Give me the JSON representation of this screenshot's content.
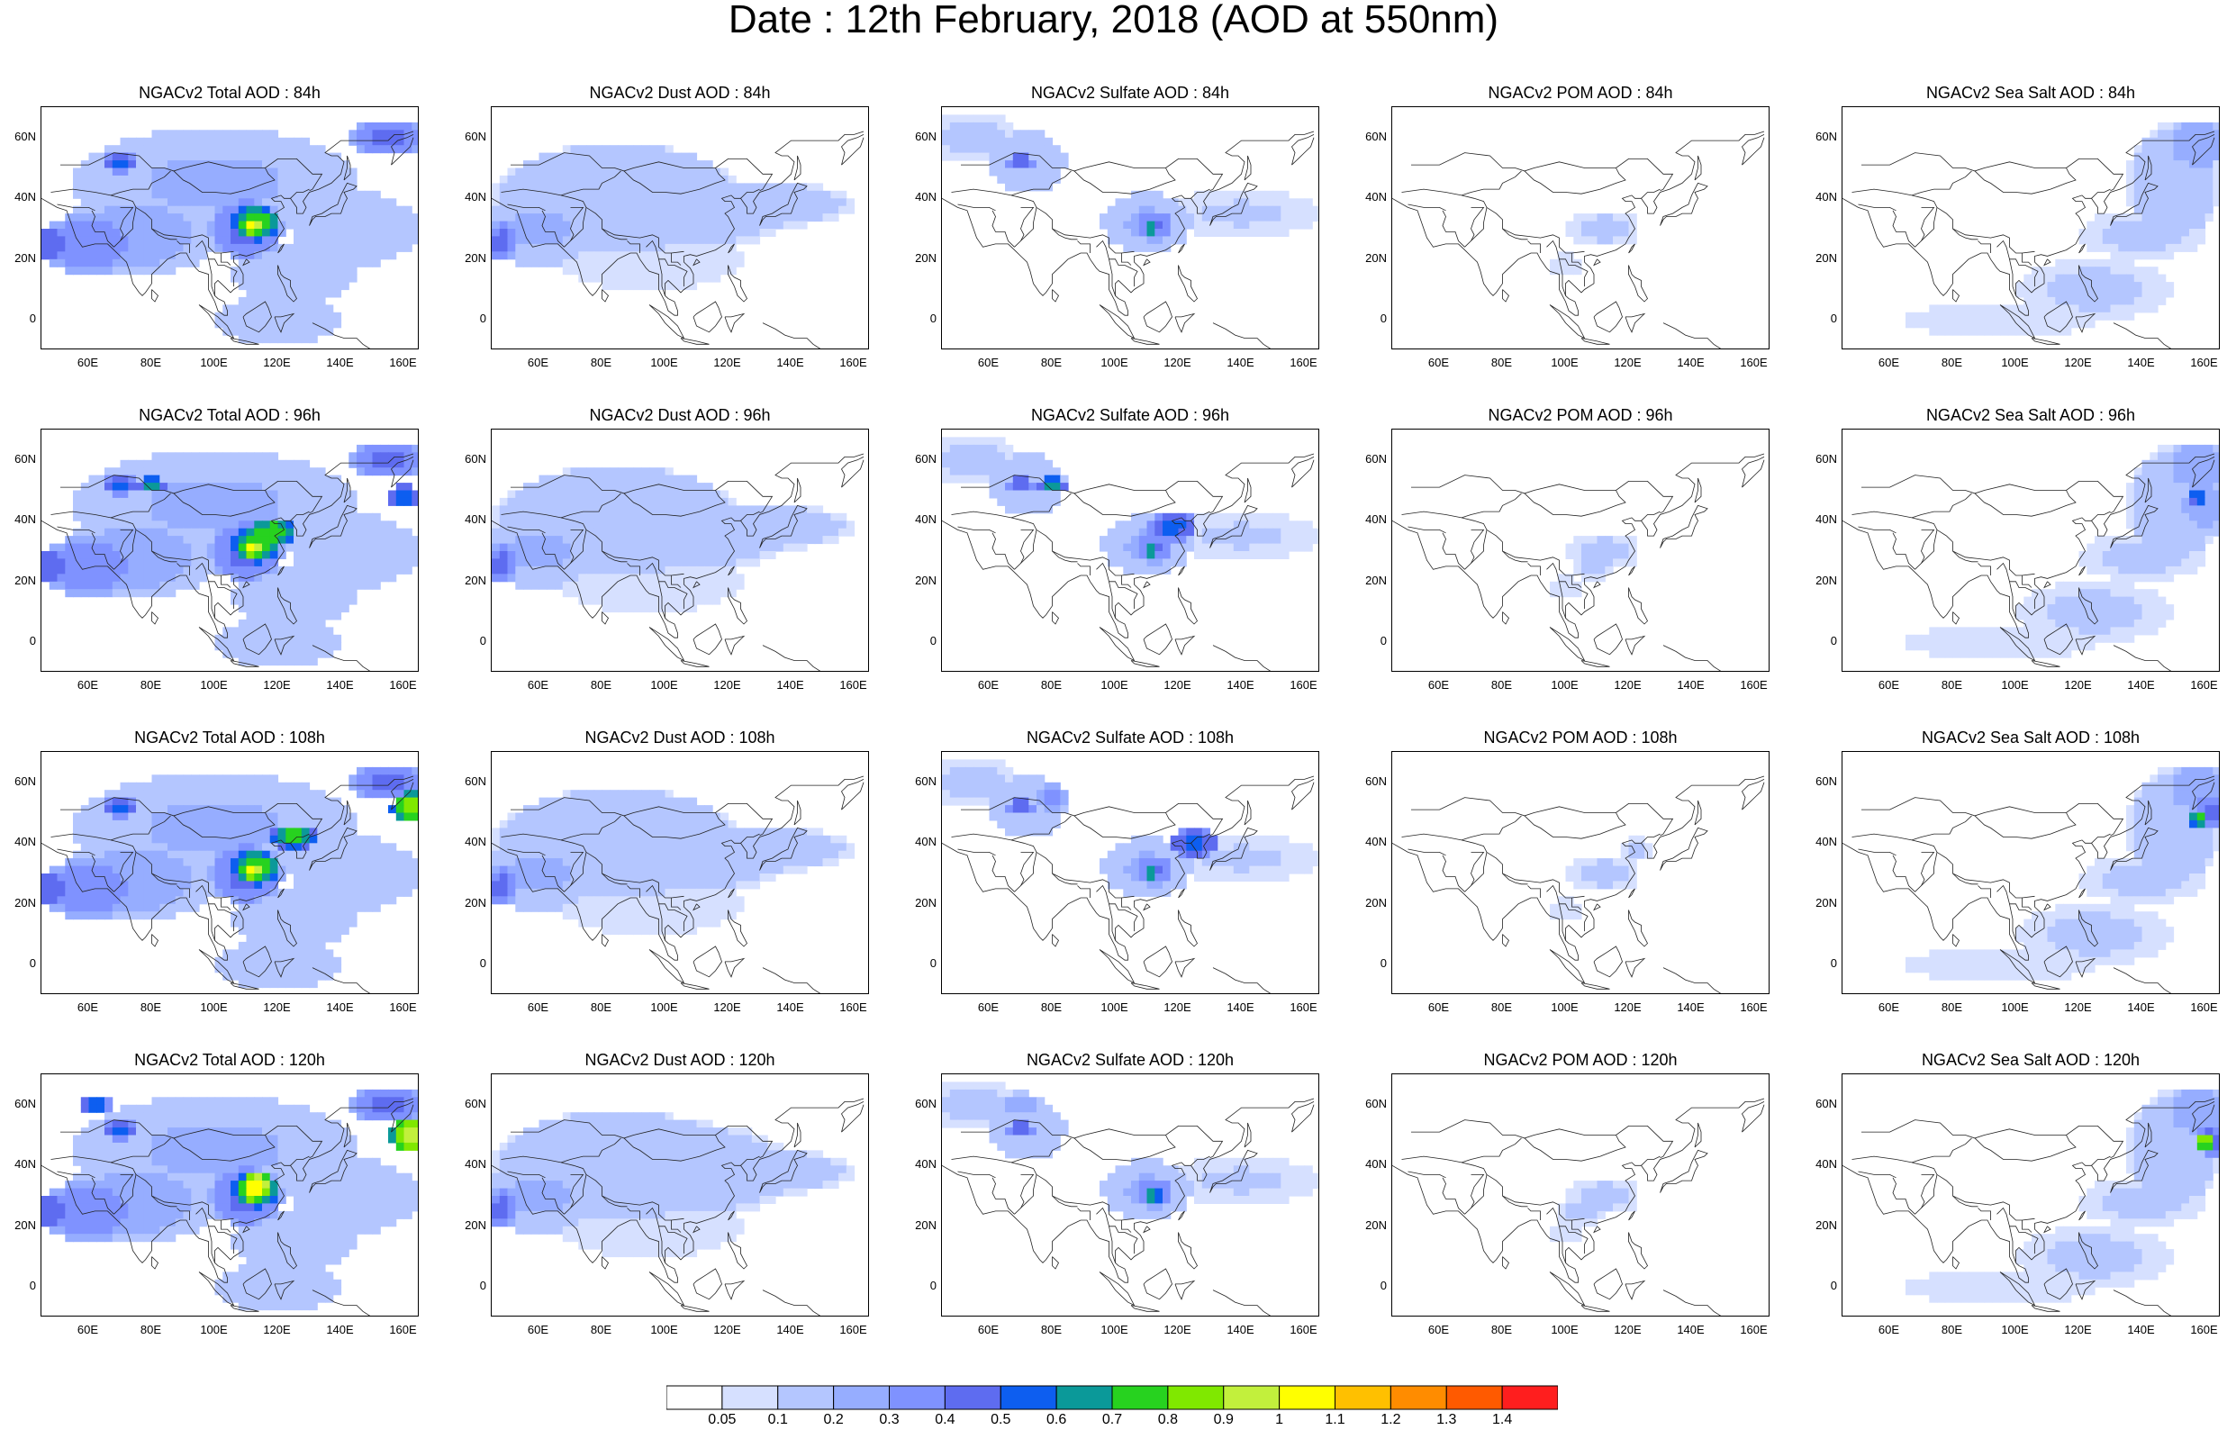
{
  "figure": {
    "title": "Date : 12th February, 2018 (AOD at 550nm)"
  },
  "axes": {
    "x_ticks": [
      "60E",
      "80E",
      "100E",
      "120E",
      "140E",
      "160E"
    ],
    "x_tick_values": [
      60,
      80,
      100,
      120,
      140,
      160
    ],
    "y_ticks": [
      "60N",
      "40N",
      "20N",
      "0"
    ],
    "y_tick_values": [
      60,
      40,
      20,
      0
    ],
    "lon_range": [
      45,
      165
    ],
    "lat_range": [
      -10,
      70
    ]
  },
  "colorbar": {
    "labels": [
      "0.05",
      "0.1",
      "0.2",
      "0.3",
      "0.4",
      "0.5",
      "0.6",
      "0.7",
      "0.8",
      "0.9",
      "1",
      "1.1",
      "1.2",
      "1.3",
      "1.4"
    ],
    "colors": [
      "#ffffff",
      "#d6e0ff",
      "#b4c6ff",
      "#96adff",
      "#7f92ff",
      "#5e6cf0",
      "#0d5ef0",
      "#0b9999",
      "#27d21f",
      "#80e800",
      "#c2f03c",
      "#ffff00",
      "#ffc000",
      "#ff8c00",
      "#ff5a00",
      "#ff1e1e"
    ]
  },
  "panels": [
    {
      "title": "NGACv2 Total AOD : 84h",
      "species": "total",
      "hour": 84
    },
    {
      "title": "NGACv2 Dust AOD : 84h",
      "species": "dust",
      "hour": 84
    },
    {
      "title": "NGACv2 Sulfate AOD : 84h",
      "species": "sulfate",
      "hour": 84
    },
    {
      "title": "NGACv2 POM AOD : 84h",
      "species": "pom",
      "hour": 84
    },
    {
      "title": "NGACv2 Sea Salt AOD : 84h",
      "species": "seasalt",
      "hour": 84
    },
    {
      "title": "NGACv2 Total AOD : 96h",
      "species": "total",
      "hour": 96
    },
    {
      "title": "NGACv2 Dust AOD : 96h",
      "species": "dust",
      "hour": 96
    },
    {
      "title": "NGACv2 Sulfate AOD : 96h",
      "species": "sulfate",
      "hour": 96
    },
    {
      "title": "NGACv2 POM AOD : 96h",
      "species": "pom",
      "hour": 96
    },
    {
      "title": "NGACv2 Sea Salt AOD : 96h",
      "species": "seasalt",
      "hour": 96
    },
    {
      "title": "NGACv2 Total AOD : 108h",
      "species": "total",
      "hour": 108
    },
    {
      "title": "NGACv2 Dust AOD : 108h",
      "species": "dust",
      "hour": 108
    },
    {
      "title": "NGACv2 Sulfate AOD : 108h",
      "species": "sulfate",
      "hour": 108
    },
    {
      "title": "NGACv2 POM AOD : 108h",
      "species": "pom",
      "hour": 108
    },
    {
      "title": "NGACv2 Sea Salt AOD : 108h",
      "species": "seasalt",
      "hour": 108
    },
    {
      "title": "NGACv2 Total AOD : 120h",
      "species": "total",
      "hour": 120
    },
    {
      "title": "NGACv2 Dust AOD : 120h",
      "species": "dust",
      "hour": 120
    },
    {
      "title": "NGACv2 Sulfate AOD : 120h",
      "species": "sulfate",
      "hour": 120
    },
    {
      "title": "NGACv2 POM AOD : 120h",
      "species": "pom",
      "hour": 120
    },
    {
      "title": "NGACv2 Sea Salt  AOD : 120h",
      "species": "seasalt",
      "hour": 120
    }
  ]
}
